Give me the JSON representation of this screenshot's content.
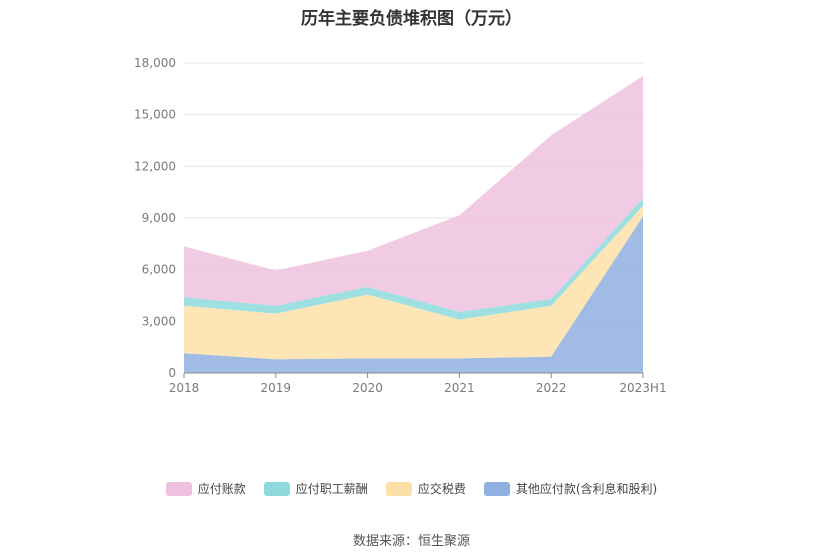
{
  "chart_data": {
    "type": "area",
    "title": "历年主要负债堆积图（万元）",
    "categories": [
      "2018",
      "2019",
      "2020",
      "2021",
      "2022",
      "2023H1"
    ],
    "ylim": [
      0,
      18000
    ],
    "yticks": [
      0,
      3000,
      6000,
      9000,
      12000,
      15000,
      18000
    ],
    "ytick_labels": [
      "0",
      "3,000",
      "6,000",
      "9,000",
      "12,000",
      "15,000",
      "18,000"
    ],
    "grid": true,
    "legend_position": "bottom",
    "stacked": true,
    "series": [
      {
        "name": "其他应付款(含利息和股利)",
        "color": "#8fb0e0",
        "values": [
          1150,
          800,
          850,
          850,
          950,
          9100
        ]
      },
      {
        "name": "应交税费",
        "color": "#fde0a8",
        "values": [
          2750,
          2650,
          3700,
          2250,
          2950,
          600
        ]
      },
      {
        "name": "应付职工薪酬",
        "color": "#8dd9dc",
        "values": [
          500,
          450,
          450,
          450,
          400,
          450
        ]
      },
      {
        "name": "应付账款",
        "color": "#eec1df",
        "values": [
          2950,
          2050,
          2100,
          5600,
          9500,
          7100
        ]
      }
    ],
    "legend_order": [
      3,
      2,
      1,
      0
    ]
  },
  "source": "数据来源：恒生聚源"
}
